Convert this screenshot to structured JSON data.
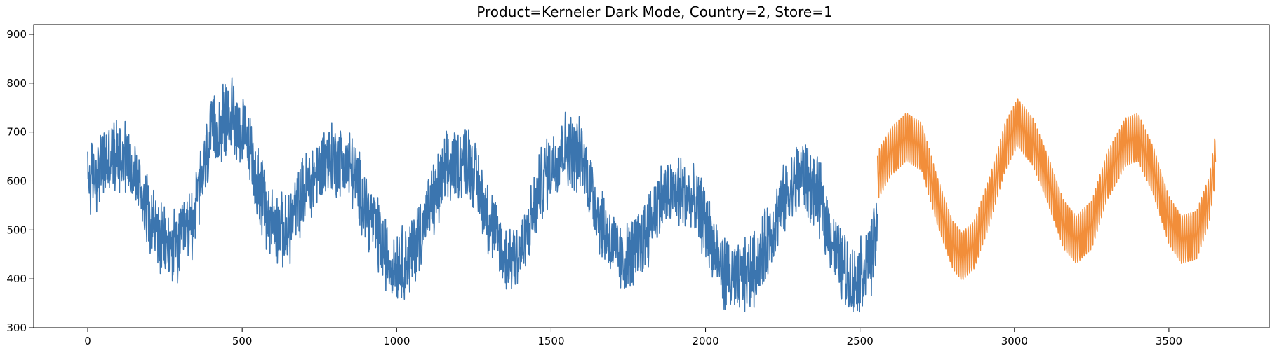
{
  "chart_data": {
    "type": "line",
    "title": "Product=Kerneler Dark Mode, Country=2, Store=1",
    "xlabel": "",
    "ylabel": "",
    "xlim": [
      -175,
      3825
    ],
    "ylim": [
      300,
      920
    ],
    "xticks": [
      0,
      500,
      1000,
      1500,
      2000,
      2500,
      3000,
      3500
    ],
    "yticks": [
      300,
      400,
      500,
      600,
      700,
      800,
      900
    ],
    "grid": false,
    "legend": "none",
    "series": [
      {
        "color": "#3b75af",
        "x_start": 0,
        "x_end": 2556,
        "step": 1,
        "envelope_note_points": [
          [
            0,
            600
          ],
          [
            60,
            640
          ],
          [
            120,
            660
          ],
          [
            180,
            570
          ],
          [
            240,
            470
          ],
          [
            290,
            460
          ],
          [
            340,
            520
          ],
          [
            400,
            690
          ],
          [
            470,
            740
          ],
          [
            520,
            670
          ],
          [
            580,
            530
          ],
          [
            640,
            490
          ],
          [
            700,
            580
          ],
          [
            780,
            650
          ],
          [
            850,
            630
          ],
          [
            920,
            520
          ],
          [
            980,
            430
          ],
          [
            1040,
            440
          ],
          [
            1100,
            530
          ],
          [
            1160,
            620
          ],
          [
            1230,
            650
          ],
          [
            1290,
            540
          ],
          [
            1350,
            440
          ],
          [
            1410,
            460
          ],
          [
            1470,
            600
          ],
          [
            1540,
            670
          ],
          [
            1600,
            650
          ],
          [
            1660,
            520
          ],
          [
            1730,
            430
          ],
          [
            1790,
            470
          ],
          [
            1850,
            560
          ],
          [
            1920,
            580
          ],
          [
            1990,
            530
          ],
          [
            2050,
            420
          ],
          [
            2100,
            390
          ],
          [
            2170,
            430
          ],
          [
            2240,
            540
          ],
          [
            2310,
            620
          ],
          [
            2370,
            560
          ],
          [
            2430,
            440
          ],
          [
            2480,
            390
          ],
          [
            2540,
            450
          ],
          [
            2556,
            510
          ]
        ],
        "noise_amplitude": 75
      },
      {
        "color": "#f28e3a",
        "x_start": 2557,
        "x_end": 3651,
        "step": 1,
        "envelope_note_points": [
          [
            2557,
            610
          ],
          [
            2600,
            660
          ],
          [
            2650,
            690
          ],
          [
            2700,
            670
          ],
          [
            2750,
            560
          ],
          [
            2800,
            470
          ],
          [
            2830,
            445
          ],
          [
            2870,
            470
          ],
          [
            2920,
            560
          ],
          [
            2970,
            670
          ],
          [
            3010,
            720
          ],
          [
            3060,
            680
          ],
          [
            3110,
            600
          ],
          [
            3160,
            510
          ],
          [
            3200,
            480
          ],
          [
            3250,
            510
          ],
          [
            3300,
            610
          ],
          [
            3360,
            680
          ],
          [
            3400,
            690
          ],
          [
            3450,
            620
          ],
          [
            3500,
            520
          ],
          [
            3540,
            480
          ],
          [
            3590,
            490
          ],
          [
            3630,
            560
          ],
          [
            3651,
            650
          ]
        ],
        "noise_amplitude": 70
      }
    ]
  }
}
